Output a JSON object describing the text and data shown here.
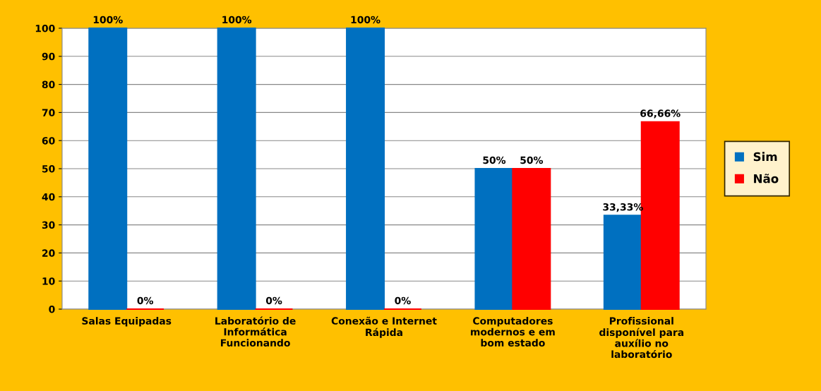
{
  "chart_data": {
    "type": "bar",
    "categories": [
      "Salas Equipadas",
      "Laboratório de\nInformática\nFuncionando",
      "Conexão e Internet\nRápida",
      "Computadores\nmodernos e em\nbom estado",
      "Profissional\ndisponível para\nauxílio no\nlaboratório"
    ],
    "series": [
      {
        "name": "Sim",
        "color": "#0070c0",
        "values": [
          100,
          100,
          100,
          50,
          33.33
        ],
        "value_labels": [
          "100%",
          "100%",
          "100%",
          "50%",
          "33,33%"
        ]
      },
      {
        "name": "Não",
        "color": "#ff0000",
        "values": [
          0,
          0,
          0,
          50,
          66.66
        ],
        "value_labels": [
          "0%",
          "0%",
          "0%",
          "50%",
          "66,66%"
        ]
      }
    ],
    "ylim": [
      0,
      100
    ],
    "yticks": [
      0,
      10,
      20,
      30,
      40,
      50,
      60,
      70,
      80,
      90,
      100
    ],
    "grid": "y",
    "legend": "right"
  }
}
